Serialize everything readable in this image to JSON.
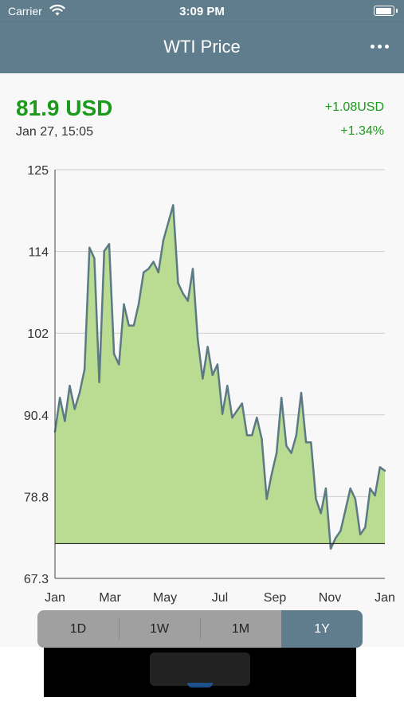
{
  "status_bar": {
    "carrier": "Carrier",
    "time": "3:09 PM"
  },
  "nav": {
    "title": "WTI Price"
  },
  "quote": {
    "price": "81.9 USD",
    "timestamp": "Jan 27, 15:05",
    "change_abs": "+1.08USD",
    "change_pct": "+1.34%"
  },
  "colors": {
    "accent": "#5f7d8c",
    "up": "#1b9a1b",
    "fill": "#b9db92",
    "line": "#5c7a84"
  },
  "chart_data": {
    "type": "area",
    "ylim": [
      67.3,
      125
    ],
    "y_ticks": [
      "125",
      "114",
      "102",
      "90.4",
      "78.8",
      "67.3"
    ],
    "x_ticks": [
      "Jan",
      "Mar",
      "May",
      "Jul",
      "Sep",
      "Nov",
      "Jan"
    ],
    "baseline": 72.2,
    "grid": true,
    "series": [
      {
        "values": [
          88.0,
          92.8,
          89.5,
          94.5,
          91.2,
          93.5,
          96.8,
          114.0,
          112.5,
          95.0,
          113.5,
          114.5,
          99.0,
          97.5,
          106.0,
          103.0,
          103.0,
          106.0,
          110.5,
          111.0,
          112.0,
          110.5,
          115.0,
          117.5,
          120.0,
          109.0,
          107.5,
          106.5,
          111.0,
          101.0,
          95.5,
          100.0,
          96.0,
          97.5,
          90.5,
          94.5,
          90.0,
          91.0,
          92.0,
          87.5,
          87.5,
          90.0,
          87.0,
          78.5,
          82.0,
          85.0,
          92.8,
          86.0,
          85.0,
          87.5,
          93.5,
          86.5,
          86.5,
          78.5,
          76.5,
          80.0,
          71.5,
          73.0,
          74.0,
          77.0,
          80.0,
          78.5,
          73.5,
          74.5,
          80.0,
          79.0,
          83.0,
          82.5
        ]
      }
    ]
  },
  "ranges": {
    "d1": "1D",
    "w1": "1W",
    "m1": "1M",
    "y1": "1Y"
  }
}
